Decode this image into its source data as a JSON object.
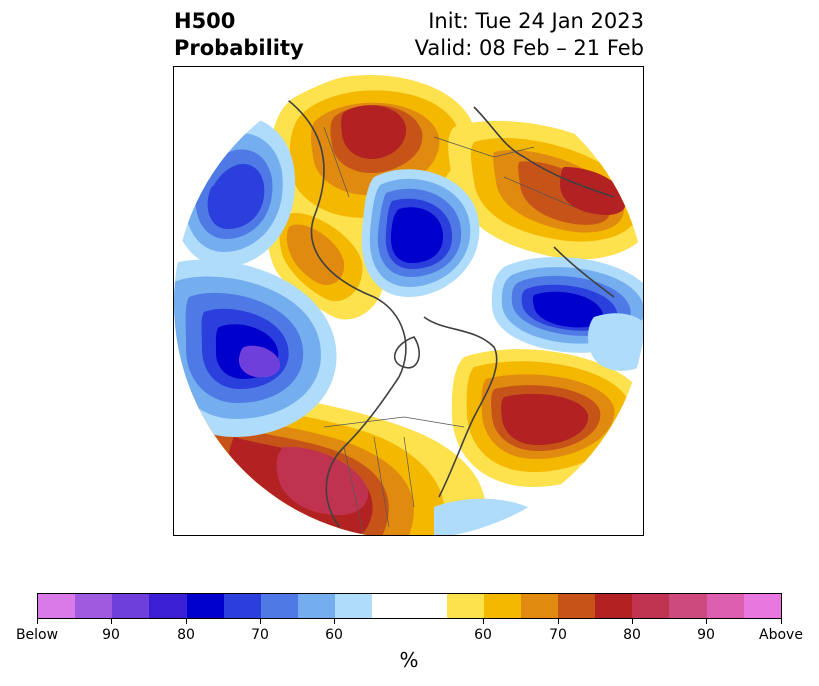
{
  "header": {
    "title_line1": "H500",
    "title_line2": "Probability",
    "init_line": "Init: Tue 24 Jan 2023",
    "valid_line": "Valid: 08 Feb – 21 Feb"
  },
  "colorbar": {
    "unit": "%",
    "segments": [
      "#d97ae8",
      "#a05ae0",
      "#6f3fdc",
      "#3a1fd4",
      "#0000cc",
      "#2a3fdc",
      "#4f7ae6",
      "#74aeee",
      "#aedcfa",
      "#ffffff",
      "#ffffff",
      "#fde14d",
      "#f4b800",
      "#e08a10",
      "#c65418",
      "#b22222",
      "#c03350",
      "#cc4a7e",
      "#dd5fb0",
      "#e878e0"
    ],
    "tick_labels": [
      "Below",
      "90",
      "80",
      "70",
      "60",
      "60",
      "70",
      "80",
      "90",
      "Above"
    ]
  },
  "map": {
    "type": "polar-stereographic probability map",
    "colors": {
      "deep_blue": "#0000cc",
      "blue": "#2a3fdc",
      "mid_blue": "#4f7ae6",
      "light_blue": "#74aeee",
      "pale_blue": "#aedcfa",
      "purple": "#6f3fdc",
      "yellow": "#fde14d",
      "gold": "#f4b800",
      "orange": "#e08a10",
      "dark_orange": "#c65418",
      "red": "#b22222",
      "crimson": "#c03350"
    }
  }
}
